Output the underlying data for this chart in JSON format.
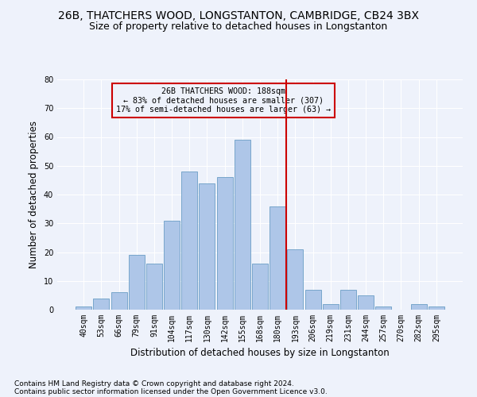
{
  "title": "26B, THATCHERS WOOD, LONGSTANTON, CAMBRIDGE, CB24 3BX",
  "subtitle": "Size of property relative to detached houses in Longstanton",
  "xlabel": "Distribution of detached houses by size in Longstanton",
  "ylabel": "Number of detached properties",
  "footnote1": "Contains HM Land Registry data © Crown copyright and database right 2024.",
  "footnote2": "Contains public sector information licensed under the Open Government Licence v3.0.",
  "bar_labels": [
    "40sqm",
    "53sqm",
    "66sqm",
    "79sqm",
    "91sqm",
    "104sqm",
    "117sqm",
    "130sqm",
    "142sqm",
    "155sqm",
    "168sqm",
    "180sqm",
    "193sqm",
    "206sqm",
    "219sqm",
    "231sqm",
    "244sqm",
    "257sqm",
    "270sqm",
    "282sqm",
    "295sqm"
  ],
  "bar_values": [
    1,
    4,
    6,
    19,
    16,
    31,
    48,
    44,
    46,
    59,
    16,
    36,
    21,
    7,
    2,
    7,
    5,
    1,
    0,
    2,
    1
  ],
  "bar_color": "#aec6e8",
  "bar_edge_color": "#6a9ec5",
  "vline_color": "#cc0000",
  "vline_x": 11.5,
  "annotation_text": "26B THATCHERS WOOD: 188sqm\n← 83% of detached houses are smaller (307)\n17% of semi-detached houses are larger (63) →",
  "annotation_box_color": "#cc0000",
  "ylim": [
    0,
    80
  ],
  "yticks": [
    0,
    10,
    20,
    30,
    40,
    50,
    60,
    70,
    80
  ],
  "bg_color": "#eef2fb",
  "grid_color": "#ffffff",
  "title_fontsize": 10,
  "subtitle_fontsize": 9,
  "axis_label_fontsize": 8.5,
  "tick_fontsize": 7,
  "footnote_fontsize": 6.5
}
